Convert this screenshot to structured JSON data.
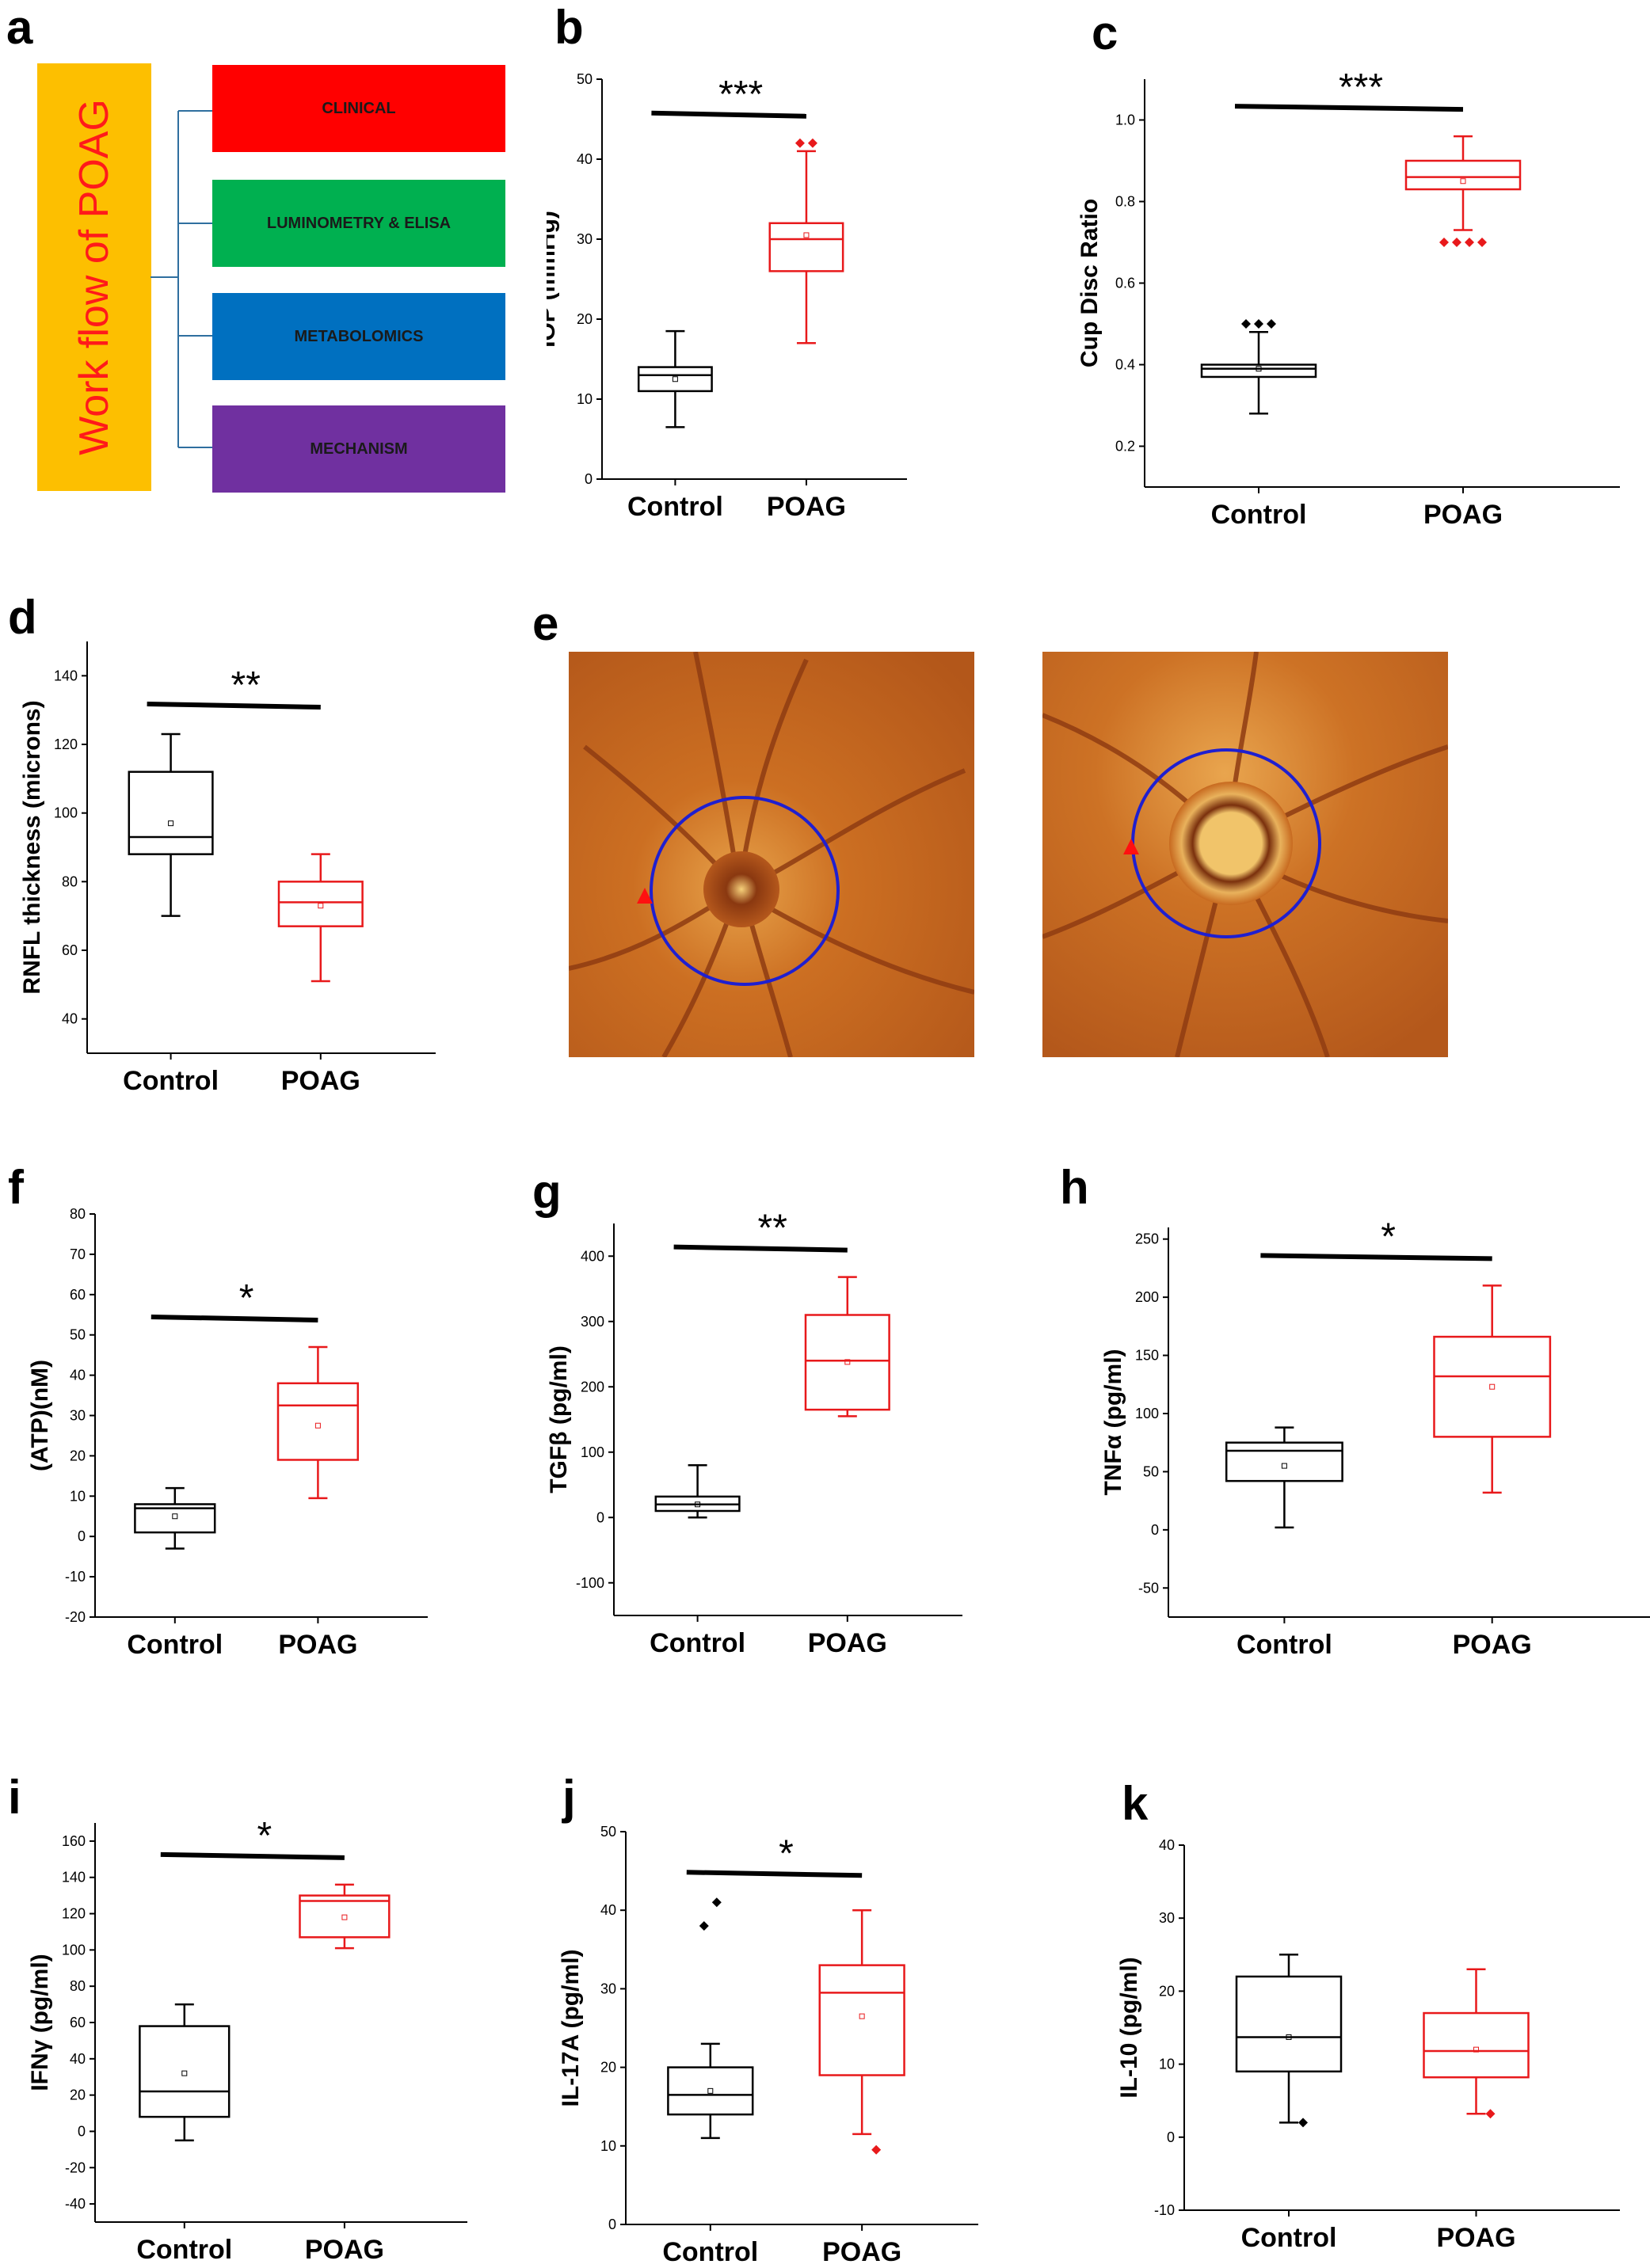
{
  "panel_labels": {
    "a": "a",
    "b": "b",
    "c": "c",
    "d": "d",
    "e": "e",
    "f": "f",
    "g": "g",
    "h": "h",
    "i": "i",
    "j": "j",
    "k": "k"
  },
  "workflow": {
    "title": "Work flow of POAG",
    "steps": [
      {
        "label": "CLINICAL",
        "color": "#ff0000"
      },
      {
        "label": "LUMINOMETRY & ELISA",
        "color": "#00b050"
      },
      {
        "label": "METABOLOMICS",
        "color": "#0070c0"
      },
      {
        "label": "MECHANISM",
        "color": "#7030a0"
      }
    ],
    "title_bg": "#fdbf00"
  },
  "colors": {
    "control": "#000000",
    "poag": "#e8191b",
    "circle": "#1f1fd0",
    "marker": "#ff1010"
  },
  "chart_data": [
    {
      "id": "b",
      "type": "box",
      "ylabel": "IOP (mmHg)",
      "ylim": [
        0,
        50
      ],
      "ticks": [
        0,
        10,
        20,
        30,
        40,
        50
      ],
      "categories": [
        "Control",
        "POAG"
      ],
      "significance": "***",
      "series": [
        {
          "name": "Control",
          "min": 6.5,
          "q1": 11,
          "median": 13,
          "q3": 14,
          "max": 18.5,
          "mean": 12.5,
          "outliers": []
        },
        {
          "name": "POAG",
          "min": 17,
          "q1": 26,
          "median": 30,
          "q3": 32,
          "max": 41,
          "mean": 30.5,
          "outliers": [
            42,
            42
          ]
        }
      ]
    },
    {
      "id": "c",
      "type": "box",
      "ylabel": "Cup Disc Ratio",
      "ylim": [
        0.1,
        1.1
      ],
      "ticks": [
        0.2,
        0.4,
        0.6,
        0.8,
        1.0
      ],
      "categories": [
        "Control",
        "POAG"
      ],
      "significance": "***",
      "series": [
        {
          "name": "Control",
          "min": 0.28,
          "q1": 0.37,
          "median": 0.39,
          "q3": 0.4,
          "max": 0.48,
          "mean": 0.39,
          "outliers": [
            0.5,
            0.5,
            0.5
          ]
        },
        {
          "name": "POAG",
          "min": 0.73,
          "q1": 0.83,
          "median": 0.86,
          "q3": 0.9,
          "max": 0.96,
          "mean": 0.85,
          "outliers": [
            0.7,
            0.7,
            0.7,
            0.7
          ]
        }
      ]
    },
    {
      "id": "d",
      "type": "box",
      "ylabel": "RNFL thickness (microns)",
      "ylim": [
        30,
        150
      ],
      "ticks": [
        40,
        60,
        80,
        100,
        120,
        140
      ],
      "categories": [
        "Control",
        "POAG"
      ],
      "significance": "**",
      "series": [
        {
          "name": "Control",
          "min": 70,
          "q1": 88,
          "median": 93,
          "q3": 112,
          "max": 123,
          "mean": 97,
          "outliers": []
        },
        {
          "name": "POAG",
          "min": 51,
          "q1": 67,
          "median": 74,
          "q3": 80,
          "max": 88,
          "mean": 73,
          "outliers": []
        }
      ]
    },
    {
      "id": "f",
      "type": "box",
      "ylabel": "(ATP)(nM)",
      "ylim": [
        -20,
        80
      ],
      "ticks": [
        -20,
        -10,
        0,
        10,
        20,
        30,
        40,
        50,
        60,
        70,
        80
      ],
      "categories": [
        "Control",
        "POAG"
      ],
      "significance": "*",
      "series": [
        {
          "name": "Control",
          "min": -3,
          "q1": 1,
          "median": 7,
          "q3": 8,
          "max": 12,
          "mean": 5,
          "outliers": []
        },
        {
          "name": "POAG",
          "min": 9.5,
          "q1": 19,
          "median": 32.5,
          "q3": 38,
          "max": 47,
          "mean": 27.5,
          "outliers": []
        }
      ]
    },
    {
      "id": "g",
      "type": "box",
      "ylabel": "TGFβ (pg/ml)",
      "ylim": [
        -150,
        450
      ],
      "ticks": [
        -100,
        0,
        100,
        200,
        300,
        400
      ],
      "categories": [
        "Control",
        "POAG"
      ],
      "significance": "**",
      "series": [
        {
          "name": "Control",
          "min": 0,
          "q1": 10,
          "median": 20,
          "q3": 32,
          "max": 80,
          "mean": 20,
          "outliers": []
        },
        {
          "name": "POAG",
          "min": 155,
          "q1": 165,
          "median": 240,
          "q3": 310,
          "max": 368,
          "mean": 238,
          "outliers": []
        }
      ]
    },
    {
      "id": "h",
      "type": "box",
      "ylabel": "TNFα (pg/ml)",
      "ylim": [
        -75,
        260
      ],
      "ticks": [
        -50,
        0,
        50,
        100,
        150,
        200,
        250
      ],
      "categories": [
        "Control",
        "POAG"
      ],
      "significance": "*",
      "series": [
        {
          "name": "Control",
          "min": 2,
          "q1": 42,
          "median": 68,
          "q3": 75,
          "max": 88,
          "mean": 55,
          "outliers": []
        },
        {
          "name": "POAG",
          "min": 32,
          "q1": 80,
          "median": 132,
          "q3": 166,
          "max": 210,
          "mean": 123,
          "outliers": []
        }
      ]
    },
    {
      "id": "i",
      "type": "box",
      "ylabel": "IFNγ (pg/ml)",
      "ylim": [
        -50,
        170
      ],
      "ticks": [
        -40,
        -20,
        0,
        20,
        40,
        60,
        80,
        100,
        120,
        140,
        160
      ],
      "categories": [
        "Control",
        "POAG"
      ],
      "significance": "*",
      "series": [
        {
          "name": "Control",
          "min": -5,
          "q1": 8,
          "median": 22,
          "q3": 58,
          "max": 70,
          "mean": 32,
          "outliers": []
        },
        {
          "name": "POAG",
          "min": 101,
          "q1": 107,
          "median": 127,
          "q3": 130,
          "max": 136,
          "mean": 118,
          "outliers": []
        }
      ]
    },
    {
      "id": "j",
      "type": "box",
      "ylabel": "IL-17A (pg/ml)",
      "ylim": [
        0,
        50
      ],
      "ticks": [
        0,
        10,
        20,
        30,
        40,
        50
      ],
      "categories": [
        "Control",
        "POAG"
      ],
      "significance": "*",
      "series": [
        {
          "name": "Control",
          "min": 11,
          "q1": 14,
          "median": 16.5,
          "q3": 20,
          "max": 23,
          "mean": 17,
          "outliers": [
            38,
            41
          ]
        },
        {
          "name": "POAG",
          "min": 11.5,
          "q1": 19,
          "median": 29.5,
          "q3": 33,
          "max": 40,
          "mean": 26.5,
          "outliers": [
            9.5
          ]
        }
      ]
    },
    {
      "id": "k",
      "type": "box",
      "ylabel": "IL-10 (pg/ml)",
      "ylim": [
        -10,
        40
      ],
      "ticks": [
        -10,
        0,
        10,
        20,
        30,
        40
      ],
      "categories": [
        "Control",
        "POAG"
      ],
      "significance": "",
      "series": [
        {
          "name": "Control",
          "min": 2,
          "q1": 9,
          "median": 13.7,
          "q3": 22,
          "max": 25,
          "mean": 13.7,
          "outliers": [
            2
          ]
        },
        {
          "name": "POAG",
          "min": 3.2,
          "q1": 8.2,
          "median": 11.8,
          "q3": 17,
          "max": 23,
          "mean": 12,
          "outliers": [
            3.2
          ]
        }
      ]
    }
  ]
}
